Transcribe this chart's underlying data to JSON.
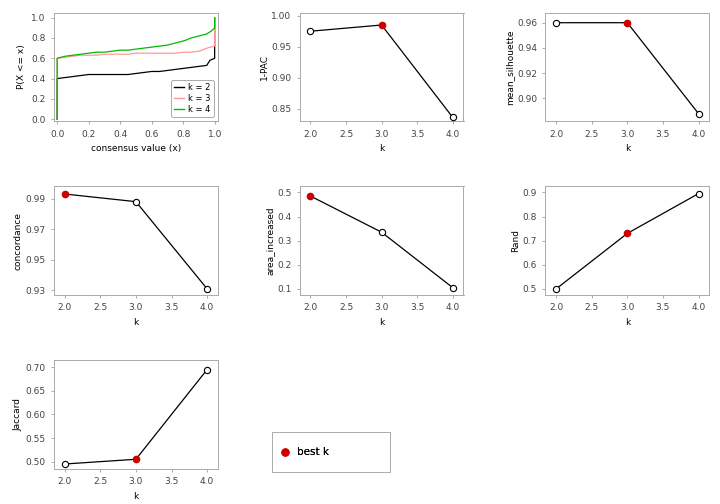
{
  "ecdf": {
    "k2": {
      "x": [
        0.0,
        0.0,
        0.05,
        0.1,
        0.15,
        0.2,
        0.25,
        0.3,
        0.35,
        0.4,
        0.45,
        0.5,
        0.55,
        0.6,
        0.65,
        0.7,
        0.75,
        0.8,
        0.85,
        0.9,
        0.95,
        0.97,
        1.0,
        1.0
      ],
      "y": [
        0.0,
        0.4,
        0.41,
        0.42,
        0.43,
        0.44,
        0.44,
        0.44,
        0.44,
        0.44,
        0.44,
        0.45,
        0.46,
        0.47,
        0.47,
        0.48,
        0.49,
        0.5,
        0.51,
        0.52,
        0.53,
        0.58,
        0.6,
        1.0
      ],
      "color": "#000000"
    },
    "k3": {
      "x": [
        0.0,
        0.0,
        0.05,
        0.1,
        0.15,
        0.2,
        0.25,
        0.3,
        0.35,
        0.4,
        0.45,
        0.5,
        0.55,
        0.6,
        0.65,
        0.7,
        0.75,
        0.8,
        0.85,
        0.9,
        0.92,
        0.95,
        1.0,
        1.0
      ],
      "y": [
        0.0,
        0.6,
        0.61,
        0.62,
        0.63,
        0.63,
        0.63,
        0.64,
        0.64,
        0.64,
        0.64,
        0.65,
        0.65,
        0.65,
        0.65,
        0.65,
        0.65,
        0.66,
        0.66,
        0.67,
        0.68,
        0.7,
        0.72,
        1.0
      ],
      "color": "#FF9999"
    },
    "k4": {
      "x": [
        0.0,
        0.0,
        0.05,
        0.1,
        0.15,
        0.2,
        0.25,
        0.3,
        0.35,
        0.4,
        0.45,
        0.5,
        0.55,
        0.6,
        0.65,
        0.7,
        0.75,
        0.8,
        0.82,
        0.85,
        0.9,
        0.95,
        0.98,
        1.0,
        1.0
      ],
      "y": [
        0.0,
        0.6,
        0.62,
        0.63,
        0.64,
        0.65,
        0.66,
        0.66,
        0.67,
        0.68,
        0.68,
        0.69,
        0.7,
        0.71,
        0.72,
        0.73,
        0.75,
        0.77,
        0.78,
        0.8,
        0.82,
        0.84,
        0.87,
        0.9,
        1.0
      ],
      "color": "#00BB00"
    }
  },
  "pac": {
    "k": [
      2,
      3,
      4
    ],
    "values": [
      0.975,
      0.985,
      0.836
    ],
    "best_k": 3,
    "ylim": [
      0.83,
      1.005
    ],
    "yticks": [
      0.85,
      0.9,
      0.95,
      1.0
    ],
    "yticklabels": [
      "0.85",
      "0.90",
      "0.95",
      "1.00"
    ],
    "ylabel": "1-PAC"
  },
  "silhouette": {
    "k": [
      2,
      3,
      4
    ],
    "values": [
      0.96,
      0.96,
      0.888
    ],
    "best_k": 3,
    "ylim": [
      0.882,
      0.968
    ],
    "yticks": [
      0.9,
      0.92,
      0.94,
      0.96
    ],
    "yticklabels": [
      "0.90",
      "0.92",
      "0.94",
      "0.96"
    ],
    "ylabel": "mean_silhouette"
  },
  "concordance": {
    "k": [
      2,
      3,
      4
    ],
    "values": [
      0.993,
      0.988,
      0.931
    ],
    "best_k": 2,
    "ylim": [
      0.927,
      0.998
    ],
    "yticks": [
      0.93,
      0.95,
      0.97,
      0.99
    ],
    "yticklabels": [
      "0.93",
      "0.95",
      "0.97",
      "0.99"
    ],
    "ylabel": "concordance"
  },
  "area_increased": {
    "k": [
      2,
      3,
      4
    ],
    "values": [
      0.485,
      0.335,
      0.105
    ],
    "best_k": 2,
    "ylim": [
      0.075,
      0.525
    ],
    "yticks": [
      0.1,
      0.2,
      0.3,
      0.4,
      0.5
    ],
    "yticklabels": [
      "0.1",
      "0.2",
      "0.3",
      "0.4",
      "0.5"
    ],
    "ylabel": "area_increased"
  },
  "rand": {
    "k": [
      2,
      3,
      4
    ],
    "values": [
      0.5,
      0.73,
      0.895
    ],
    "best_k": 3,
    "ylim": [
      0.475,
      0.925
    ],
    "yticks": [
      0.5,
      0.6,
      0.7,
      0.8,
      0.9
    ],
    "yticklabels": [
      "0.5",
      "0.6",
      "0.7",
      "0.8",
      "0.9"
    ],
    "ylabel": "Rand"
  },
  "jaccard": {
    "k": [
      2,
      3,
      4
    ],
    "values": [
      0.495,
      0.505,
      0.695
    ],
    "best_k": 3,
    "ylim": [
      0.485,
      0.715
    ],
    "yticks": [
      0.5,
      0.55,
      0.6,
      0.65,
      0.7
    ],
    "yticklabels": [
      "0.50",
      "0.55",
      "0.60",
      "0.65",
      "0.70"
    ],
    "ylabel": "Jaccard"
  },
  "bg_color": "#FFFFFF",
  "best_k_color": "#CC0000",
  "spine_color": "#AAAAAA",
  "tick_color": "#444444",
  "line_color": "#000000",
  "ecdf_legend": [
    {
      "label": "k = 2",
      "color": "#000000"
    },
    {
      "label": "k = 3",
      "color": "#FF9999"
    },
    {
      "label": "k = 4",
      "color": "#00BB00"
    }
  ]
}
